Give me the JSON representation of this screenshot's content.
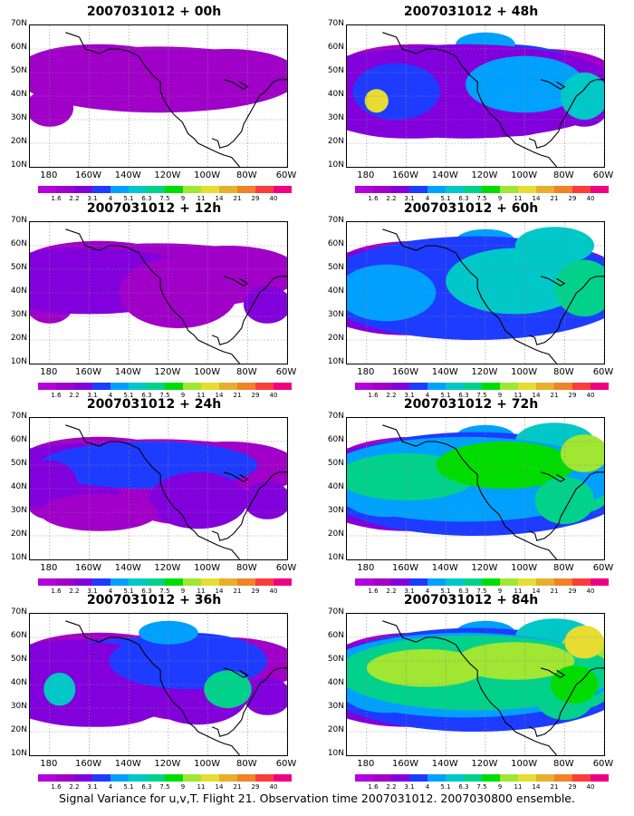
{
  "panels": [
    {
      "title": "2007031012 + 00h",
      "level": 0
    },
    {
      "title": "2007031012 + 48h",
      "level": 4
    },
    {
      "title": "2007031012 + 12h",
      "level": 1
    },
    {
      "title": "2007031012 + 60h",
      "level": 5
    },
    {
      "title": "2007031012 + 24h",
      "level": 2
    },
    {
      "title": "2007031012 + 72h",
      "level": 6
    },
    {
      "title": "2007031012 + 36h",
      "level": 3
    },
    {
      "title": "2007031012 + 84h",
      "level": 7
    }
  ],
  "lat_labels": [
    "70N",
    "60N",
    "50N",
    "40N",
    "30N",
    "20N",
    "10N"
  ],
  "lon_labels": [
    "180",
    "160W",
    "140W",
    "120W",
    "100W",
    "80W",
    "60W"
  ],
  "colorbar": {
    "labels": [
      "1.6",
      "2.2",
      "3.1",
      "4",
      "5.1",
      "6.3",
      "7.5",
      "9",
      "11",
      "14",
      "21",
      "29",
      "40"
    ],
    "colors": [
      "#a000c8",
      "#8200dc",
      "#1e3cff",
      "#00a0ff",
      "#00c8c8",
      "#00d28c",
      "#00dc00",
      "#a0e632",
      "#e6dc32",
      "#e6af2d",
      "#f08228",
      "#fa3c3c",
      "#f00082"
    ]
  },
  "footer": "Signal Variance for u,v,T. Flight 21. Observation time 2007031012. 2007030800 ensemble."
}
